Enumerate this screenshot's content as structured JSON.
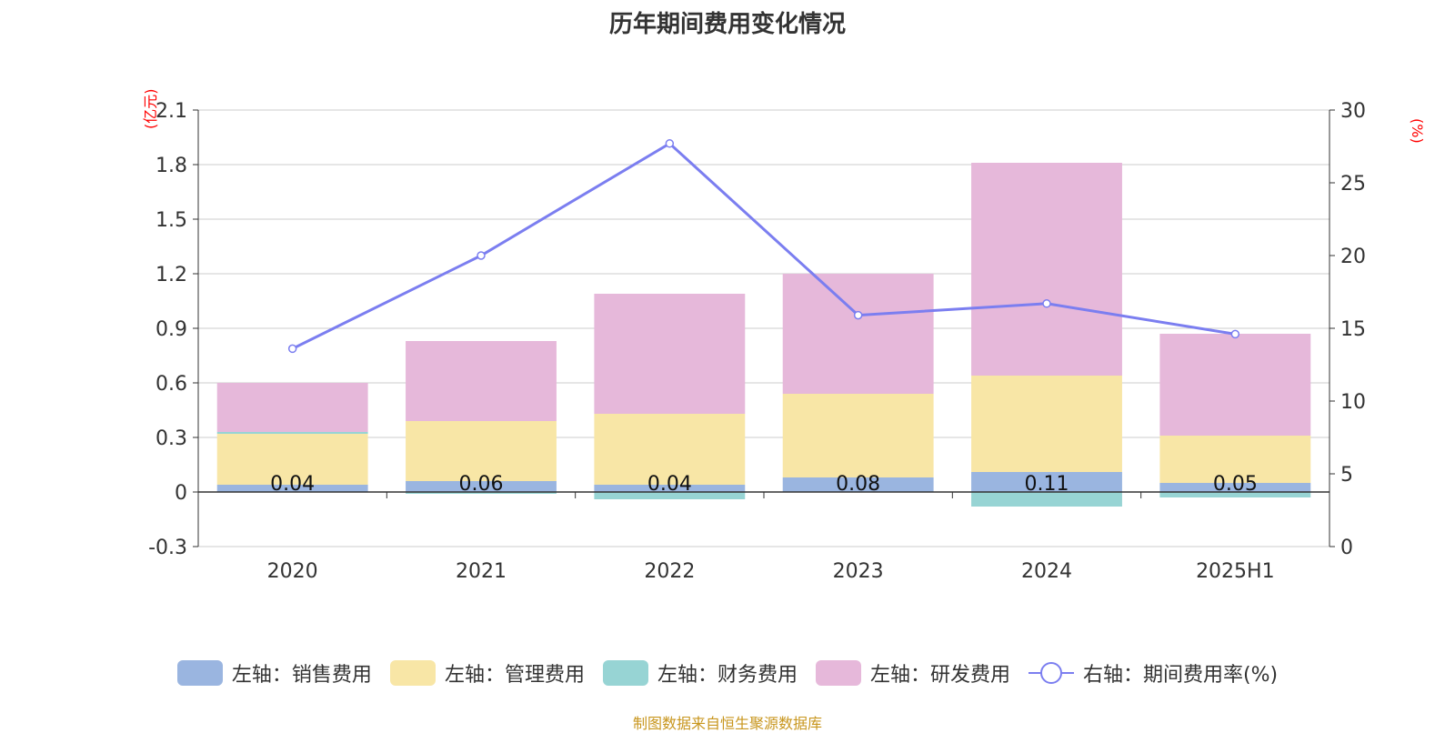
{
  "title": "历年期间费用变化情况",
  "left_unit": "(亿元)",
  "right_unit": "(%)",
  "source": "制图数据来自恒生聚源数据库",
  "legend": [
    {
      "label": "左轴：销售费用",
      "color": "#9ab5e0",
      "kind": "bar"
    },
    {
      "label": "左轴：管理费用",
      "color": "#f8e6a6",
      "kind": "bar"
    },
    {
      "label": "左轴：财务费用",
      "color": "#97d4d4",
      "kind": "bar"
    },
    {
      "label": "左轴：研发费用",
      "color": "#e6b8da",
      "kind": "bar"
    },
    {
      "label": "右轴：期间费用率(%)",
      "color": "#7b7ef0",
      "kind": "line"
    }
  ],
  "chart_data": {
    "type": "bar",
    "title": "历年期间费用变化情况",
    "categories": [
      "2020",
      "2021",
      "2022",
      "2023",
      "2024",
      "2025H1"
    ],
    "series": [
      {
        "name": "左轴：销售费用",
        "axis": "left",
        "color": "#9ab5e0",
        "values": [
          0.04,
          0.06,
          0.04,
          0.08,
          0.11,
          0.05
        ]
      },
      {
        "name": "左轴：管理费用",
        "axis": "left",
        "color": "#f8e6a6",
        "values": [
          0.28,
          0.33,
          0.39,
          0.46,
          0.53,
          0.26
        ]
      },
      {
        "name": "左轴：财务费用",
        "axis": "left",
        "color": "#97d4d4",
        "values": [
          0.01,
          -0.01,
          -0.04,
          0.0,
          -0.08,
          -0.03
        ]
      },
      {
        "name": "左轴：研发费用",
        "axis": "left",
        "color": "#e6b8da",
        "values": [
          0.27,
          0.44,
          0.66,
          0.66,
          1.17,
          0.56
        ]
      },
      {
        "name": "右轴：期间费用率(%)",
        "axis": "right",
        "type": "line",
        "color": "#7b7ef0",
        "values": [
          13.6,
          20.0,
          27.7,
          15.9,
          16.7,
          14.6
        ]
      }
    ],
    "data_labels": [
      "0.04",
      "0.06",
      "0.04",
      "0.08",
      "0.11",
      "0.05"
    ],
    "y_left": {
      "min": -0.3,
      "max": 2.1,
      "ticks": [
        "-0.3",
        "0",
        "0.3",
        "0.6",
        "0.9",
        "1.2",
        "1.5",
        "1.8",
        "2.1"
      ],
      "label": "(亿元)"
    },
    "y_right": {
      "min": 0,
      "max": 30,
      "ticks": [
        "0",
        "5",
        "10",
        "15",
        "20",
        "25",
        "30"
      ],
      "label": "(%)"
    },
    "grid": true,
    "legend_position": "bottom"
  }
}
